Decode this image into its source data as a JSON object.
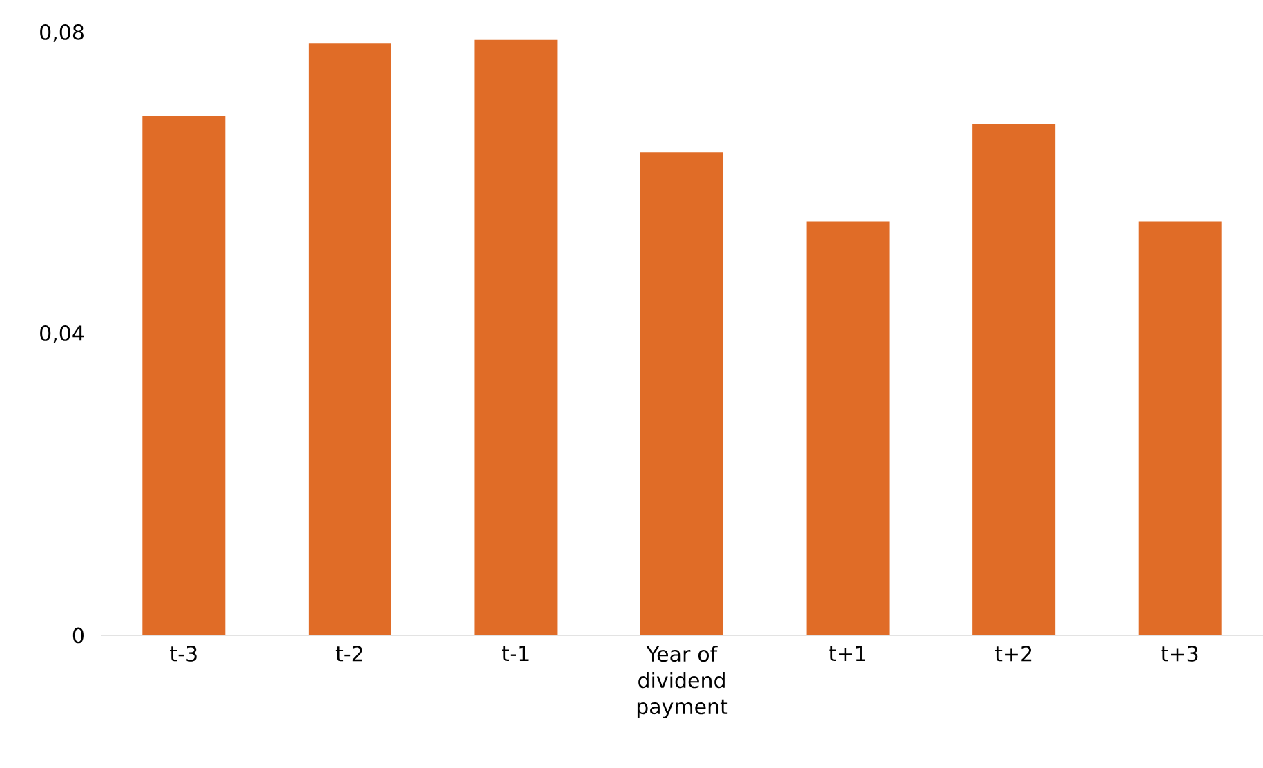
{
  "chart_data": {
    "type": "bar",
    "categories": [
      "t-3",
      "t-2",
      "t-1",
      "Year of dividend payment",
      "t+1",
      "t+2",
      "t+3"
    ],
    "values": [
      0.069,
      0.0787,
      0.0791,
      0.0642,
      0.055,
      0.0679,
      0.055
    ],
    "color": "#e06c27",
    "ylim": [
      0,
      0.08
    ],
    "yticks": [
      0,
      {
        "value": 0.04,
        "label": "0,04"
      },
      {
        "value": 0.08,
        "label": "0,08"
      }
    ],
    "grid": false
  }
}
